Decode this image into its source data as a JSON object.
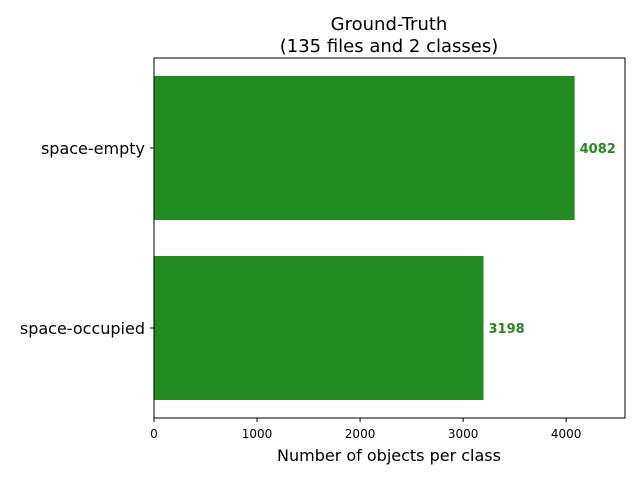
{
  "chart_data": {
    "type": "bar",
    "orientation": "horizontal",
    "title_line1": "Ground-Truth",
    "title_line2": "(135 files and 2 classes)",
    "xlabel": "Number of objects per class",
    "ylabel": "",
    "categories": [
      "space-empty",
      "space-occupied"
    ],
    "values": [
      4082,
      3198
    ],
    "value_labels": [
      "4082",
      "3198"
    ],
    "xlim": [
      0,
      4571
    ],
    "xticks": [
      0,
      1000,
      2000,
      3000,
      4000
    ],
    "xtick_labels": [
      "0",
      "1000",
      "2000",
      "3000",
      "4000"
    ],
    "bar_color": "#228b22",
    "value_label_color": "#228b22",
    "grid": false
  }
}
